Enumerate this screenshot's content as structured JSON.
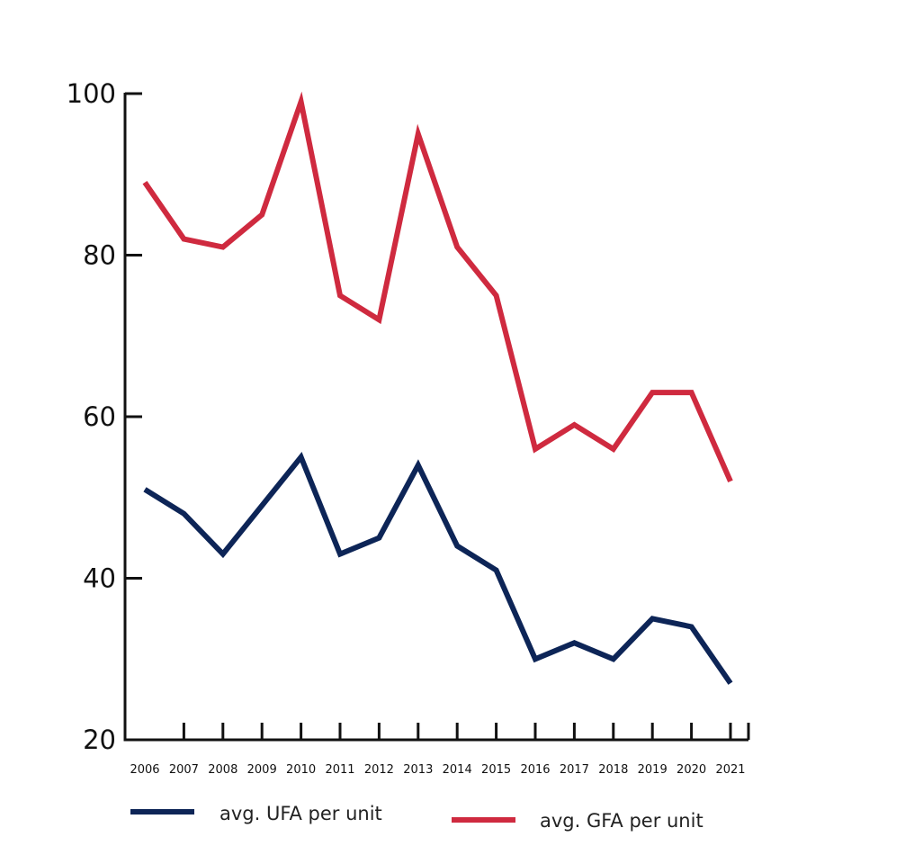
{
  "chart_data": {
    "type": "line",
    "title": "",
    "xlabel": "",
    "ylabel": "",
    "x": [
      "2006",
      "2007",
      "2008",
      "2009",
      "2010",
      "2011",
      "2012",
      "2013",
      "2014",
      "2015",
      "2016",
      "2017",
      "2018",
      "2019",
      "2020",
      "2021"
    ],
    "ylim": [
      20,
      100
    ],
    "yticks": [
      "20",
      "40",
      "60",
      "80",
      "100"
    ],
    "grid": false,
    "legend_position": "bottom",
    "series": [
      {
        "name": "avg. UFA per unit",
        "color": "#0d2557",
        "values": [
          51,
          48,
          43,
          49,
          55,
          43,
          45,
          54,
          44,
          41,
          30,
          32,
          30,
          35,
          34,
          27
        ]
      },
      {
        "name": "avg. GFA per unit",
        "color": "#cf2a3f",
        "values": [
          89,
          82,
          81,
          85,
          99,
          75,
          72,
          95,
          81,
          75,
          56,
          59,
          56,
          63,
          63,
          52
        ]
      }
    ]
  }
}
